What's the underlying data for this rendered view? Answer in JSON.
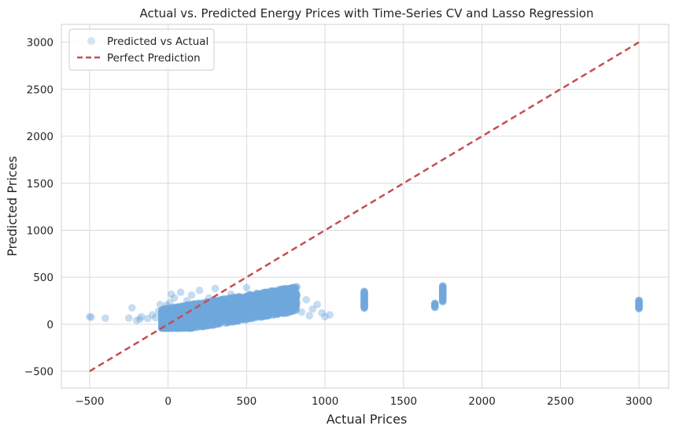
{
  "chart_data": {
    "type": "scatter",
    "title": "Actual vs. Predicted Energy Prices with Time-Series CV and Lasso Regression",
    "xlabel": "Actual Prices",
    "ylabel": "Predicted Prices",
    "xlim": [
      -680,
      3190
    ],
    "ylim": [
      -680,
      3190
    ],
    "xticks": [
      -500,
      0,
      500,
      1000,
      1500,
      2000,
      2500,
      3000
    ],
    "yticks": [
      -500,
      0,
      500,
      1000,
      1500,
      2000,
      2500,
      3000
    ],
    "grid": true,
    "legend_position": "top-left",
    "series": [
      {
        "name": "Predicted vs Actual",
        "kind": "scatter",
        "color": "#6fa8dc",
        "alpha": 0.25,
        "points": [
          [
            -500,
            80
          ],
          [
            -490,
            75
          ],
          [
            -400,
            65
          ],
          [
            -250,
            65
          ],
          [
            -230,
            175
          ],
          [
            -200,
            40
          ],
          [
            -180,
            55
          ],
          [
            -170,
            80
          ],
          [
            -130,
            60
          ],
          [
            -100,
            100
          ],
          [
            -80,
            70
          ],
          [
            -60,
            140
          ],
          [
            -50,
            210
          ],
          [
            -40,
            20
          ],
          [
            -30,
            60
          ],
          [
            -20,
            120
          ],
          [
            -10,
            200
          ],
          [
            0,
            -40
          ],
          [
            10,
            230
          ],
          [
            20,
            320
          ],
          [
            30,
            50
          ],
          [
            40,
            280
          ],
          [
            60,
            150
          ],
          [
            80,
            340
          ],
          [
            100,
            100
          ],
          [
            120,
            250
          ],
          [
            150,
            310
          ],
          [
            180,
            180
          ],
          [
            200,
            360
          ],
          [
            230,
            130
          ],
          [
            260,
            280
          ],
          [
            300,
            380
          ],
          [
            320,
            150
          ],
          [
            360,
            240
          ],
          [
            400,
            320
          ],
          [
            420,
            120
          ],
          [
            460,
            280
          ],
          [
            500,
            390
          ],
          [
            520,
            190
          ],
          [
            560,
            250
          ],
          [
            600,
            330
          ],
          [
            620,
            140
          ],
          [
            660,
            290
          ],
          [
            700,
            200
          ],
          [
            740,
            310
          ],
          [
            760,
            120
          ],
          [
            780,
            250
          ],
          [
            800,
            180
          ],
          [
            820,
            230
          ],
          [
            850,
            130
          ],
          [
            880,
            260
          ],
          [
            900,
            90
          ],
          [
            920,
            160
          ],
          [
            950,
            210
          ],
          [
            980,
            120
          ],
          [
            1000,
            80
          ],
          [
            1030,
            100
          ],
          [
            1250,
            180
          ],
          [
            1250,
            210
          ],
          [
            1250,
            240
          ],
          [
            1250,
            270
          ],
          [
            1250,
            300
          ],
          [
            1250,
            340
          ],
          [
            1700,
            180
          ],
          [
            1700,
            220
          ],
          [
            1750,
            250
          ],
          [
            1750,
            290
          ],
          [
            1750,
            330
          ],
          [
            1750,
            370
          ],
          [
            1750,
            400
          ],
          [
            3000,
            170
          ],
          [
            3000,
            190
          ],
          [
            3000,
            210
          ],
          [
            3000,
            230
          ],
          [
            3000,
            250
          ]
        ]
      },
      {
        "name": "Perfect Prediction",
        "kind": "line",
        "color": "#c44e52",
        "dash": "dashed",
        "points": [
          [
            -500,
            -500
          ],
          [
            3000,
            3000
          ]
        ]
      }
    ]
  }
}
